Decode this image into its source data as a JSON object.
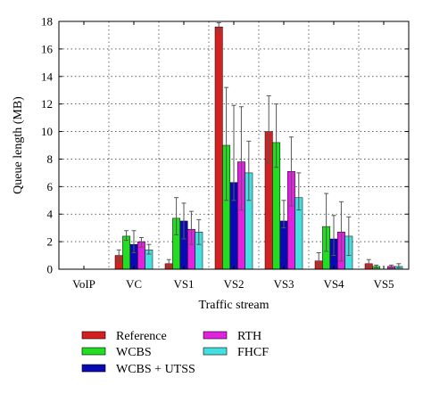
{
  "chart_data": {
    "type": "bar",
    "xlabel": "Traffic stream",
    "ylabel": "Queue length (MB)",
    "ylim": [
      0,
      18
    ],
    "yticks": [
      0,
      2,
      4,
      6,
      8,
      10,
      12,
      14,
      16,
      18
    ],
    "grid": true,
    "legend_position": "bottom",
    "categories": [
      "VoIP",
      "VC",
      "VS1",
      "VS2",
      "VS3",
      "VS4",
      "VS5"
    ],
    "series": [
      {
        "name": "Reference",
        "color": "#d42020",
        "values": [
          0.0,
          1.0,
          0.4,
          17.6,
          10.0,
          0.6,
          0.4
        ],
        "err_low": [
          0.0,
          0.6,
          0.2,
          17.3,
          7.7,
          0.2,
          0.2
        ],
        "err_high": [
          0.0,
          1.4,
          0.7,
          17.9,
          12.6,
          1.2,
          0.7
        ]
      },
      {
        "name": "WCBS",
        "color": "#22dd22",
        "values": [
          0.0,
          2.4,
          3.7,
          9.0,
          9.2,
          3.1,
          0.2
        ],
        "err_low": [
          0.0,
          2.1,
          2.5,
          5.0,
          7.4,
          1.3,
          0.1
        ],
        "err_high": [
          0.0,
          2.8,
          5.2,
          13.2,
          12.0,
          5.5,
          0.3
        ]
      },
      {
        "name": "WCBS + UTSS",
        "color": "#0a0ab4",
        "values": [
          0.0,
          1.8,
          3.5,
          6.3,
          3.5,
          2.2,
          0.0
        ],
        "err_low": [
          0.0,
          1.2,
          2.2,
          5.0,
          3.0,
          1.0,
          0.0
        ],
        "err_high": [
          0.0,
          2.8,
          4.8,
          11.9,
          5.0,
          3.9,
          0.0
        ]
      },
      {
        "name": "RTH",
        "color": "#e022e0",
        "values": [
          0.0,
          2.0,
          2.9,
          7.8,
          7.1,
          2.7,
          0.2
        ],
        "err_low": [
          0.0,
          1.6,
          1.8,
          4.3,
          4.6,
          0.6,
          0.1
        ],
        "err_high": [
          0.0,
          2.3,
          4.2,
          11.8,
          9.6,
          4.9,
          0.3
        ]
      },
      {
        "name": "FHCF",
        "color": "#44e0e0",
        "values": [
          0.0,
          1.4,
          2.7,
          7.0,
          5.2,
          2.4,
          0.2
        ],
        "err_low": [
          0.0,
          1.1,
          1.8,
          5.0,
          4.3,
          1.0,
          0.1
        ],
        "err_high": [
          0.0,
          1.8,
          3.6,
          9.3,
          7.0,
          3.8,
          0.4
        ]
      }
    ]
  }
}
